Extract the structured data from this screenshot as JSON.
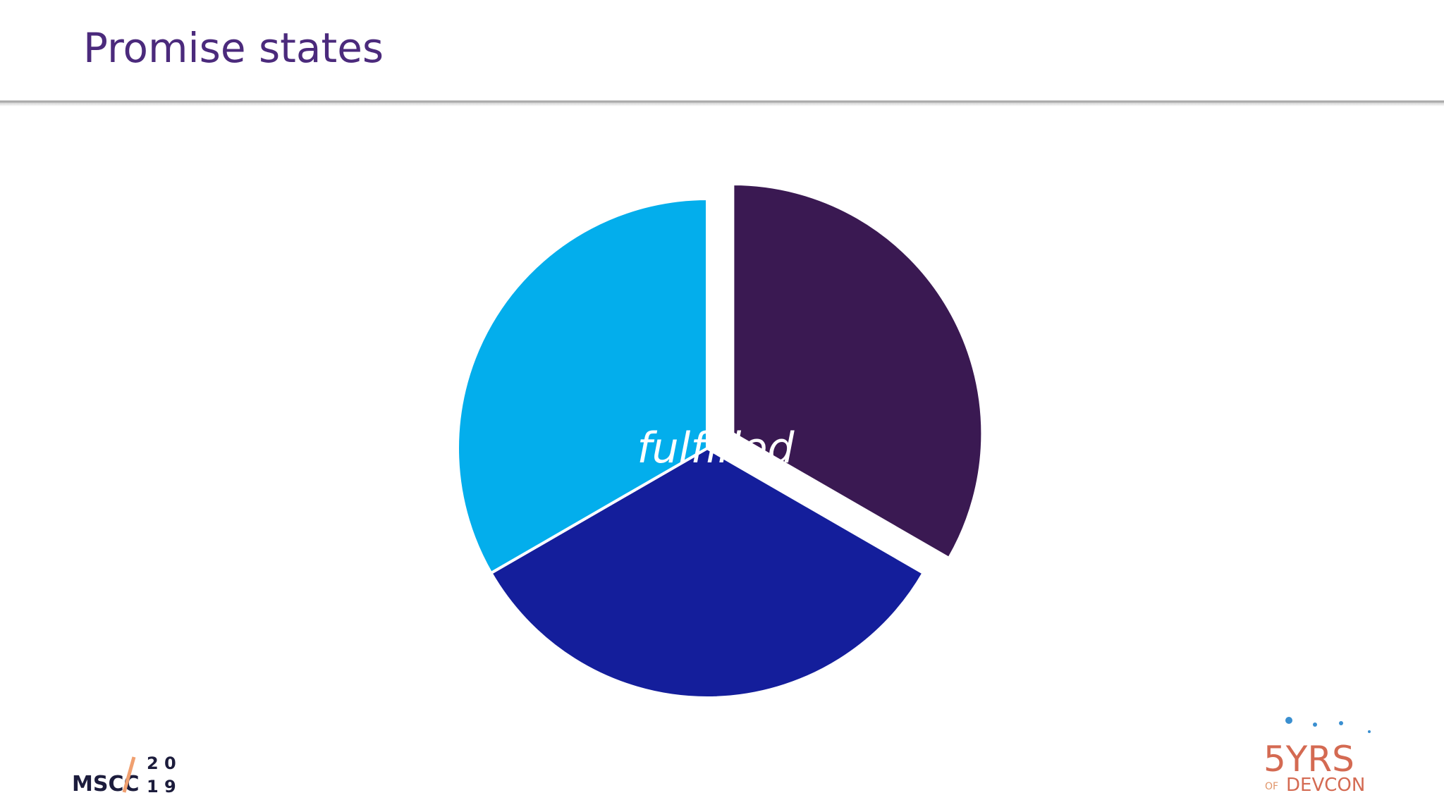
{
  "chart_data": {
    "type": "pie",
    "title": "Promise states",
    "categories": [
      null,
      "fulfilled",
      null
    ],
    "values": [
      1,
      1,
      1
    ],
    "colors": [
      "#3a1952",
      "#141e9b",
      "#03aeec"
    ]
  },
  "footer": {
    "left_logo": [
      "MSCC",
      "2 0",
      "1 9"
    ],
    "right_logo": [
      "5YRS",
      "OF",
      "DEVCON"
    ]
  }
}
